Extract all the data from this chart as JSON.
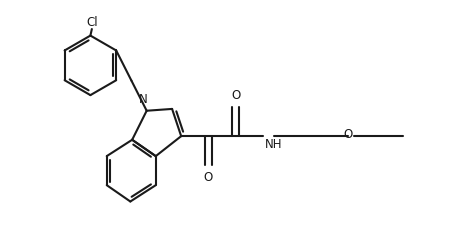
{
  "background_color": "#ffffff",
  "line_color": "#1a1a1a",
  "line_width": 1.5,
  "figsize": [
    4.64,
    2.36
  ],
  "dpi": 100,
  "xlim": [
    0,
    12
  ],
  "ylim": [
    0,
    6.5
  ]
}
